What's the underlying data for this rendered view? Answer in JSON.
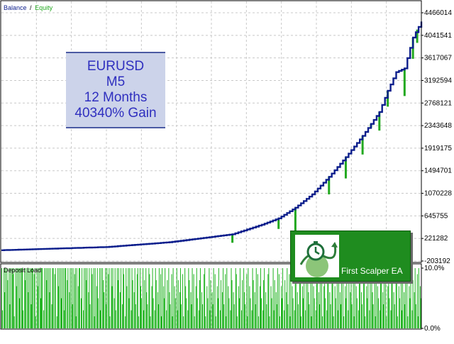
{
  "colors": {
    "balance": "#0c1e8c",
    "equity": "#22a81f",
    "deposit_load": "#1fb31f",
    "grid": "#c8c8c8",
    "info_text": "#2f2fbf",
    "info_bg": "#ccd3ea",
    "ea_bg": "#1f8c1f"
  },
  "legend": {
    "balance_label": "Balance",
    "separator": "/",
    "equity_label": "Equity"
  },
  "info_box": {
    "lines": [
      "EURUSD",
      "M5",
      "12 Months",
      "40340% Gain"
    ]
  },
  "product_badge": {
    "title": "First Scalper EA",
    "logo_icon": "clock-growth-icon"
  },
  "chart_data": [
    {
      "type": "line",
      "title": "",
      "legend_placement": "top-left",
      "grid": true,
      "ylabel": "",
      "xlabel": "",
      "y_tick_labels": [
        "4466014",
        "4041541",
        "3617067",
        "3192594",
        "2768121",
        "2343648",
        "1919175",
        "1494701",
        "1070228",
        "645755",
        "221282",
        "-203192"
      ],
      "ylim": [
        -203192,
        4466014
      ],
      "x": [
        0,
        25,
        40,
        55,
        62,
        66,
        70,
        74,
        78,
        82,
        86,
        90,
        92,
        94,
        96,
        98,
        100
      ],
      "series": [
        {
          "name": "Balance",
          "values": [
            0,
            60000,
            150000,
            300000,
            480000,
            600000,
            800000,
            1050000,
            1380000,
            1750000,
            2150000,
            2600000,
            3000000,
            3350000,
            3420000,
            4000000,
            4300000
          ]
        }
      ],
      "equity_drawdowns": [
        {
          "x": 55,
          "low": 140000
        },
        {
          "x": 66,
          "low": 400000
        },
        {
          "x": 70,
          "low": -60000
        },
        {
          "x": 78,
          "low": 1050000
        },
        {
          "x": 82,
          "low": 1350000
        },
        {
          "x": 86,
          "low": 1800000
        },
        {
          "x": 88,
          "low": 2300000
        },
        {
          "x": 90,
          "low": 2250000
        },
        {
          "x": 92,
          "low": 2700000
        },
        {
          "x": 96,
          "low": 2900000
        },
        {
          "x": 98,
          "low": 3600000
        },
        {
          "x": 99,
          "low": 3900000
        }
      ]
    },
    {
      "type": "bar",
      "title": "Deposit Load",
      "ylim": [
        0,
        10
      ],
      "y_tick_labels": [
        "10.0%",
        "0.0%"
      ],
      "values": [
        10,
        3,
        0,
        10,
        6,
        10,
        0,
        10,
        8,
        0,
        10,
        4,
        10,
        0,
        10,
        9,
        10,
        2,
        0,
        10,
        7,
        10,
        0,
        10,
        5,
        10,
        0,
        10,
        10,
        3,
        0,
        10,
        8,
        10,
        0,
        10,
        6,
        10,
        0,
        10,
        4,
        10,
        10,
        0,
        9,
        10,
        2,
        0,
        10,
        7,
        10,
        0,
        10,
        5,
        10,
        10,
        0,
        3,
        10,
        0,
        10,
        8,
        10,
        0,
        10,
        6,
        10,
        0,
        4,
        10,
        10,
        0,
        9,
        10,
        0,
        2,
        10,
        7,
        10,
        0,
        10,
        5,
        10,
        0,
        10,
        3,
        10,
        10,
        0,
        8,
        10,
        0,
        6,
        10,
        0,
        10,
        4,
        10,
        0,
        9,
        10,
        2,
        10,
        0,
        7,
        10,
        10,
        0,
        5,
        10,
        0,
        3,
        10,
        0,
        10,
        8,
        10,
        0,
        6,
        10,
        4,
        0,
        10,
        9,
        0,
        10,
        2,
        10,
        0,
        7,
        10,
        5,
        0,
        10,
        3,
        10,
        0,
        10,
        8,
        6,
        0,
        10,
        4,
        10,
        0,
        9,
        10,
        2,
        0,
        10,
        7,
        10,
        0,
        5,
        10,
        3,
        0,
        10,
        8,
        10,
        0,
        6,
        10,
        0,
        4,
        10,
        9,
        0,
        2,
        10,
        7,
        0,
        10,
        5,
        10,
        0,
        3,
        10,
        8,
        0,
        6,
        10,
        4,
        0,
        9,
        10,
        2,
        0,
        10,
        7,
        5,
        0,
        10,
        3,
        8,
        0,
        10,
        6,
        4,
        0,
        10,
        9,
        2,
        0,
        7,
        10,
        5,
        0,
        3,
        10,
        8,
        0,
        6,
        4,
        10,
        0,
        9,
        2,
        10,
        0,
        7,
        5,
        10,
        0,
        3,
        8,
        0,
        10,
        6,
        4,
        0,
        9,
        2,
        10,
        0,
        7,
        5,
        0,
        10,
        3,
        8,
        0,
        6,
        10,
        4,
        0,
        9,
        2,
        0,
        10,
        7,
        5,
        0,
        3,
        10,
        8,
        0,
        6,
        4,
        10,
        0,
        9,
        2,
        0,
        7,
        10,
        5,
        0,
        3,
        8,
        10,
        0,
        6,
        4,
        0,
        9,
        10,
        2,
        0,
        7,
        5,
        0,
        10,
        3,
        8,
        0,
        6,
        4,
        10,
        0,
        9,
        2,
        0,
        7,
        5,
        10,
        0,
        3,
        8,
        0,
        6,
        10,
        4,
        0,
        9,
        2,
        10,
        0,
        7,
        5,
        0,
        3,
        10,
        8,
        0,
        6,
        4,
        0,
        10,
        9,
        2,
        0,
        7,
        5,
        10,
        0,
        3,
        8,
        0,
        10,
        6,
        4,
        0,
        9,
        2,
        10,
        0,
        7,
        5,
        0,
        3,
        10,
        8,
        0,
        6,
        4,
        10,
        0,
        9,
        2,
        0,
        7,
        10,
        5,
        0,
        3,
        8,
        10,
        0,
        6,
        4,
        0,
        9,
        10,
        2,
        0,
        7,
        5,
        0,
        10,
        3,
        8,
        0,
        6,
        4,
        10,
        0,
        9,
        2,
        0,
        7,
        5,
        10,
        0,
        3,
        8,
        0,
        6,
        10,
        4,
        0,
        9,
        2,
        10,
        0,
        7,
        5,
        0,
        3,
        10,
        8,
        0,
        6,
        4,
        0,
        10,
        9,
        2,
        0,
        7,
        5,
        10,
        0,
        3,
        8,
        0,
        10,
        6,
        4,
        0,
        9,
        2,
        10,
        0,
        7,
        5,
        0,
        3,
        10,
        8,
        0,
        6,
        4,
        10,
        0,
        9,
        2,
        0,
        7,
        10,
        5,
        0,
        3,
        8,
        10,
        0,
        6,
        4,
        0,
        9,
        10,
        2,
        0,
        7,
        5,
        0,
        10,
        3,
        8,
        0,
        6,
        4,
        10,
        0,
        9,
        2,
        0,
        7,
        5,
        10,
        0,
        3,
        8,
        0,
        6,
        10,
        4,
        0,
        9,
        2,
        10,
        0,
        7,
        5,
        0,
        3,
        10,
        8,
        0,
        6,
        4,
        0,
        10,
        9,
        2,
        0,
        7,
        5,
        10,
        0,
        3,
        8,
        0,
        10,
        6,
        4,
        0,
        9,
        2,
        10,
        0,
        7,
        5,
        0,
        3,
        10,
        8,
        0,
        6,
        4,
        10,
        0,
        9,
        2,
        0,
        7,
        10,
        5,
        0,
        3,
        8,
        10,
        0,
        6,
        4,
        0,
        9,
        10,
        2,
        0,
        7,
        5,
        0,
        10,
        3,
        8,
        0,
        6,
        4,
        10,
        0,
        9,
        2,
        0,
        7,
        5,
        10,
        0,
        3,
        8,
        0,
        6,
        10,
        4,
        0,
        9,
        2,
        10,
        0,
        7,
        5
      ]
    }
  ]
}
